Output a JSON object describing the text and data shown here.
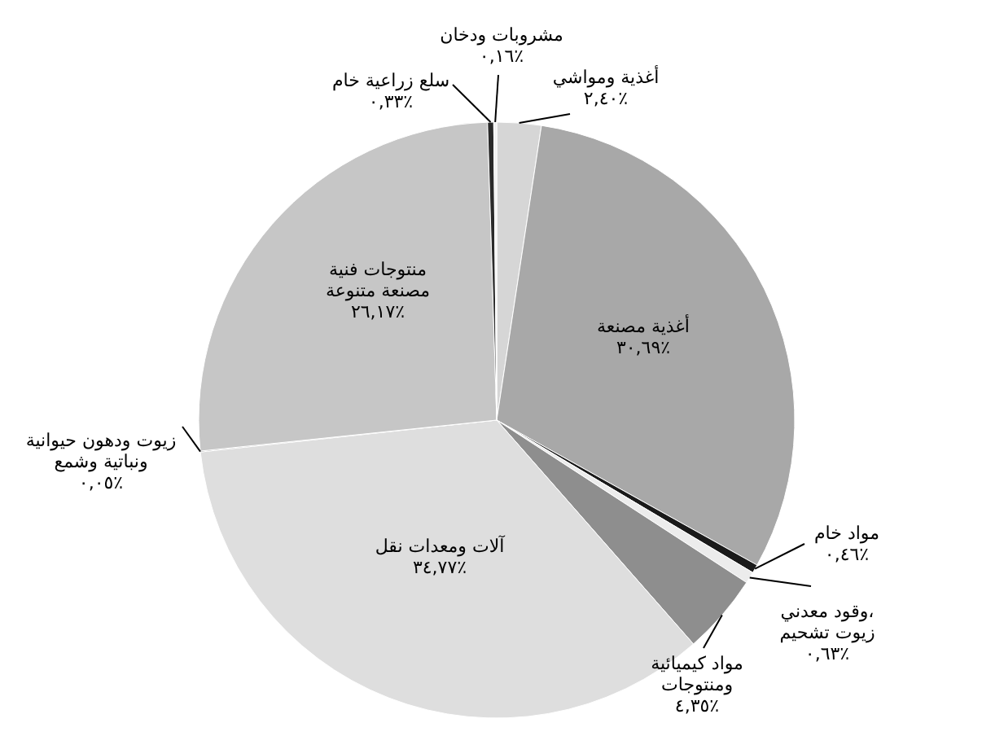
{
  "chart_data": {
    "type": "pie",
    "categories": [
      "أغذية ومواشي",
      "أغذية مصنعة",
      "مواد خام",
      "وقود معدني، زيوت تشحيم",
      "مواد كيميائية ومنتوجات",
      "آلات ومعدات نقل",
      "زيوت ودهون حيوانية ونباتية وشمع",
      "منتوجات فنية مصنعة متنوعة",
      "سلع زراعية خام",
      "مشروبات ودخان"
    ],
    "values": [
      2.4,
      30.69,
      0.46,
      0.63,
      4.35,
      34.77,
      0.05,
      26.17,
      0.33,
      0.16
    ],
    "value_labels": [
      "٢,٤٠٪",
      "٣٠,٦٩٪",
      "٠,٤٦٪",
      "٠,٦٣٪",
      "٤,٣٥٪",
      "٣٤,٧٧٪",
      "٠,٠٥٪",
      "٢٦,١٧٪",
      "٠,٣٣٪",
      "٠,١٦٪"
    ],
    "colors": [
      "#d6d6d6",
      "#a8a8a8",
      "#1a1a1a",
      "#ececec",
      "#8e8e8e",
      "#dedede",
      "#555555",
      "#c6c6c6",
      "#2a2a2a",
      "#f2f2f2"
    ]
  }
}
